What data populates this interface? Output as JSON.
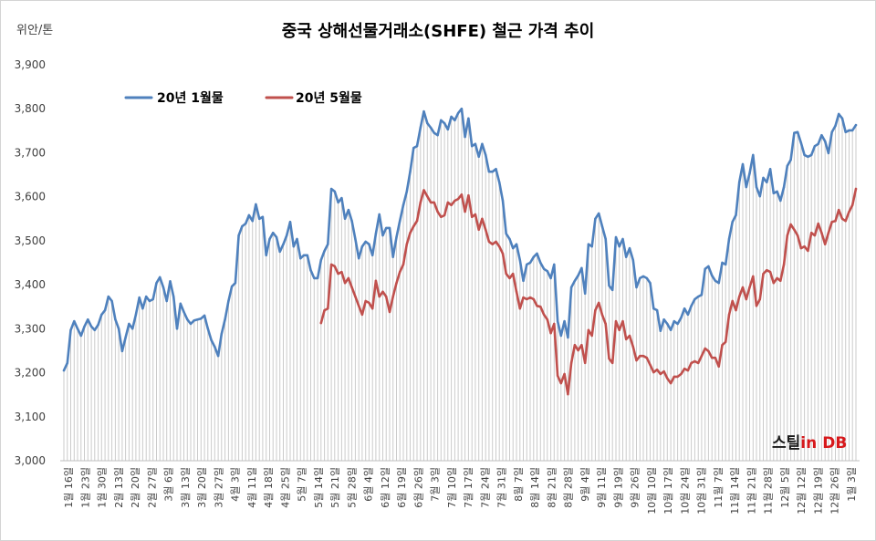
{
  "chart_data": {
    "type": "line",
    "title": "중국 상해선물거래소(SHFE) 철근 가격 추이",
    "ylabel": "위안/톤",
    "ylim": [
      3000,
      3900
    ],
    "y_tick_labels": [
      "3,000",
      "3,100",
      "3,200",
      "3,300",
      "3,400",
      "3,500",
      "3,600",
      "3,700",
      "3,800",
      "3,900"
    ],
    "x_tick_labels": [
      "1월 16일",
      "1월 23일",
      "1월 30일",
      "2월 13일",
      "2월 20일",
      "2월 27일",
      "3월 6일",
      "3월 13일",
      "3월 20일",
      "3월 27일",
      "4월 3일",
      "4월 11일",
      "4월 18일",
      "4월 25일",
      "5월 7일",
      "5월 14일",
      "5월 21일",
      "5월 28일",
      "6월 4일",
      "6월 12일",
      "6월 19일",
      "6월 26일",
      "7월 3일",
      "7월 10일",
      "7월 17일",
      "7월 24일",
      "7월 31일",
      "8월 7일",
      "8월 14일",
      "8월 21일",
      "8월 28일",
      "9월 4일",
      "9월 11일",
      "9월 19일",
      "9월 26일",
      "10월 10일",
      "10월 17일",
      "10월 24일",
      "10월 31일",
      "11월 7일",
      "11월 14일",
      "11월 21일",
      "11월 28일",
      "12월 5일",
      "12월 12일",
      "12월 19일",
      "12월 26일",
      "1월 3일"
    ],
    "grid": false,
    "drop_lines": true,
    "legend_position": "top-left",
    "series": [
      {
        "name": "20년 1월물",
        "color": "#4f81bd",
        "values": [
          3205,
          3222,
          3297,
          3317,
          3300,
          3284,
          3305,
          3321,
          3305,
          3297,
          3309,
          3332,
          3342,
          3373,
          3363,
          3321,
          3300,
          3249,
          3280,
          3311,
          3300,
          3332,
          3371,
          3346,
          3373,
          3363,
          3367,
          3404,
          3417,
          3394,
          3363,
          3408,
          3373,
          3300,
          3357,
          3338,
          3321,
          3311,
          3319,
          3321,
          3323,
          3330,
          3300,
          3274,
          3259,
          3238,
          3288,
          3321,
          3363,
          3396,
          3404,
          3512,
          3533,
          3539,
          3558,
          3545,
          3583,
          3550,
          3554,
          3467,
          3504,
          3518,
          3508,
          3475,
          3492,
          3512,
          3543,
          3487,
          3504,
          3460,
          3467,
          3467,
          3433,
          3415,
          3415,
          3456,
          3477,
          3492,
          3618,
          3612,
          3587,
          3597,
          3550,
          3570,
          3545,
          3504,
          3460,
          3487,
          3498,
          3492,
          3467,
          3516,
          3560,
          3512,
          3529,
          3529,
          3463,
          3508,
          3545,
          3581,
          3612,
          3657,
          3711,
          3715,
          3757,
          3794,
          3767,
          3757,
          3745,
          3740,
          3774,
          3767,
          3753,
          3782,
          3774,
          3790,
          3800,
          3736,
          3778,
          3715,
          3720,
          3691,
          3720,
          3695,
          3657,
          3657,
          3663,
          3633,
          3591,
          3516,
          3504,
          3483,
          3492,
          3456,
          3409,
          3446,
          3450,
          3463,
          3471,
          3450,
          3436,
          3431,
          3415,
          3446,
          3317,
          3284,
          3317,
          3280,
          3394,
          3409,
          3421,
          3438,
          3380,
          3492,
          3487,
          3550,
          3562,
          3533,
          3504,
          3398,
          3388,
          3508,
          3487,
          3504,
          3463,
          3483,
          3456,
          3394,
          3415,
          3419,
          3415,
          3404,
          3346,
          3342,
          3295,
          3321,
          3311,
          3297,
          3317,
          3311,
          3325,
          3346,
          3332,
          3352,
          3367,
          3373,
          3377,
          3436,
          3442,
          3421,
          3409,
          3404,
          3450,
          3446,
          3504,
          3543,
          3558,
          3633,
          3674,
          3622,
          3653,
          3695,
          3622,
          3601,
          3643,
          3633,
          3663,
          3608,
          3612,
          3591,
          3622,
          3670,
          3684,
          3745,
          3747,
          3722,
          3695,
          3691,
          3695,
          3715,
          3720,
          3740,
          3726,
          3699,
          3747,
          3761,
          3788,
          3778,
          3747,
          3751,
          3751,
          3763
        ]
      },
      {
        "name": "20년 5월물",
        "color": "#c0504d",
        "values": [
          null,
          null,
          null,
          null,
          null,
          null,
          null,
          null,
          null,
          null,
          null,
          null,
          null,
          null,
          null,
          null,
          null,
          null,
          null,
          null,
          null,
          null,
          null,
          null,
          null,
          null,
          null,
          null,
          null,
          null,
          null,
          null,
          null,
          null,
          null,
          null,
          null,
          null,
          null,
          null,
          null,
          null,
          null,
          null,
          null,
          null,
          null,
          null,
          null,
          null,
          null,
          null,
          null,
          null,
          null,
          null,
          null,
          null,
          null,
          null,
          null,
          null,
          null,
          null,
          null,
          null,
          null,
          null,
          null,
          null,
          null,
          null,
          null,
          null,
          null,
          3313,
          3342,
          3346,
          3446,
          3442,
          3425,
          3429,
          3404,
          3415,
          3394,
          3373,
          3352,
          3332,
          3363,
          3359,
          3346,
          3409,
          3373,
          3384,
          3373,
          3338,
          3373,
          3404,
          3429,
          3446,
          3492,
          3518,
          3533,
          3545,
          3587,
          3615,
          3601,
          3587,
          3587,
          3566,
          3554,
          3558,
          3587,
          3581,
          3591,
          3595,
          3605,
          3566,
          3603,
          3554,
          3560,
          3525,
          3550,
          3525,
          3498,
          3492,
          3498,
          3487,
          3471,
          3425,
          3415,
          3425,
          3384,
          3346,
          3371,
          3367,
          3371,
          3367,
          3352,
          3350,
          3332,
          3321,
          3290,
          3311,
          3193,
          3176,
          3197,
          3151,
          3222,
          3263,
          3251,
          3263,
          3222,
          3297,
          3284,
          3342,
          3359,
          3332,
          3311,
          3232,
          3222,
          3317,
          3297,
          3317,
          3276,
          3284,
          3259,
          3228,
          3238,
          3238,
          3234,
          3218,
          3201,
          3207,
          3197,
          3203,
          3187,
          3176,
          3191,
          3191,
          3197,
          3209,
          3205,
          3222,
          3226,
          3222,
          3238,
          3255,
          3249,
          3234,
          3234,
          3214,
          3263,
          3270,
          3332,
          3363,
          3342,
          3373,
          3394,
          3367,
          3394,
          3419,
          3352,
          3367,
          3425,
          3433,
          3429,
          3404,
          3415,
          3409,
          3446,
          3512,
          3537,
          3525,
          3512,
          3483,
          3487,
          3477,
          3518,
          3512,
          3539,
          3518,
          3492,
          3518,
          3543,
          3545,
          3570,
          3550,
          3545,
          3566,
          3581,
          3618
        ]
      }
    ]
  },
  "logo": {
    "brand": "스틸",
    "in": "in",
    "db": "DB",
    "brand_color": "#1a1a1a",
    "accent_color": "#d7191c"
  }
}
